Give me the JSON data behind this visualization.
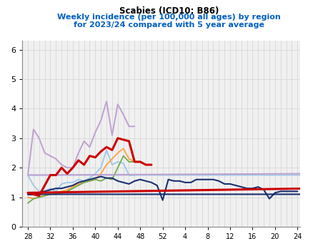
{
  "title_line1": "Scabies (ICD10: B86)",
  "title_line2": "Weekly incidence (per 100,000 all ages) by region",
  "title_line3": "for 2023/24 compared with 5 year average",
  "background_color": "#ffffff",
  "plot_bg_color": "#f0f0f0",
  "grid_color": "#d8d8d8",
  "ylim": [
    0,
    6.3
  ],
  "yticks": [
    0,
    1,
    2,
    3,
    4,
    5,
    6
  ],
  "xtick_weeks": [
    28,
    32,
    36,
    40,
    44,
    48,
    52,
    4,
    8,
    12,
    16,
    20,
    24
  ],
  "england_red": {
    "color": "#CC0000",
    "lw": 2.2,
    "weeks": [
      27,
      28,
      29,
      30,
      31,
      32,
      33,
      34,
      35,
      36,
      37,
      38,
      39,
      40,
      41,
      42,
      43,
      44,
      45,
      46,
      47,
      48,
      49,
      50
    ],
    "vals": [
      1.3,
      1.15,
      1.1,
      1.05,
      1.4,
      1.75,
      1.75,
      2.0,
      1.8,
      2.0,
      2.25,
      2.1,
      2.4,
      2.35,
      2.55,
      2.7,
      2.6,
      3.0,
      2.95,
      2.9,
      2.2,
      2.2,
      2.1,
      2.1
    ]
  },
  "north_lilac": {
    "color": "#C0A0D0",
    "lw": 1.4,
    "weeks": [
      27,
      28,
      29,
      30,
      31,
      32,
      33,
      34,
      35,
      36,
      37,
      38,
      39,
      40,
      41,
      42,
      43,
      44,
      45,
      46,
      47,
      48,
      49,
      50
    ],
    "vals": [
      1.8,
      1.75,
      3.3,
      3.0,
      2.5,
      2.4,
      2.3,
      2.1,
      2.0,
      2.0,
      2.5,
      2.9,
      2.7,
      3.2,
      3.6,
      4.25,
      3.1,
      4.15,
      3.8,
      3.4,
      3.4,
      null,
      null,
      null
    ]
  },
  "lightblue": {
    "color": "#9EC8E8",
    "lw": 1.3,
    "weeks": [
      27,
      28,
      29,
      30,
      31,
      32,
      33,
      34,
      35,
      36,
      37,
      38,
      39,
      40,
      41,
      42,
      43,
      44,
      45,
      46,
      47,
      48,
      49,
      50
    ],
    "vals": [
      1.75,
      1.75,
      1.4,
      1.2,
      1.2,
      1.3,
      1.2,
      1.45,
      1.5,
      1.5,
      1.6,
      1.55,
      1.65,
      1.8,
      2.0,
      2.6,
      2.1,
      2.2,
      2.15,
      1.75,
      1.75,
      null,
      null,
      null
    ]
  },
  "orange": {
    "color": "#FFA040",
    "lw": 1.3,
    "weeks": [
      28,
      29,
      30,
      31,
      32,
      33,
      34,
      35,
      36,
      37,
      38,
      39,
      40,
      41,
      42,
      43,
      44,
      45,
      46,
      47,
      48,
      49
    ],
    "vals": [
      1.0,
      0.95,
      1.0,
      1.05,
      1.1,
      1.15,
      1.2,
      1.25,
      1.35,
      1.45,
      1.5,
      1.55,
      1.6,
      1.8,
      2.1,
      2.3,
      2.5,
      2.65,
      2.3,
      2.2,
      null,
      null
    ]
  },
  "green": {
    "color": "#70AD47",
    "lw": 1.3,
    "weeks": [
      28,
      29,
      30,
      31,
      32,
      33,
      34,
      35,
      36,
      37,
      38,
      39,
      40,
      41,
      42,
      43,
      44,
      45,
      46,
      47,
      48
    ],
    "vals": [
      0.8,
      0.95,
      1.0,
      1.05,
      1.1,
      1.1,
      1.15,
      1.2,
      1.3,
      1.4,
      1.5,
      1.55,
      1.6,
      1.55,
      1.65,
      1.6,
      2.0,
      2.4,
      2.2,
      2.2,
      null
    ]
  },
  "fiveyravg": {
    "color": "#1A3070",
    "lw": 1.5,
    "weeks": [
      27,
      28,
      29,
      30,
      31,
      32,
      33,
      34,
      35,
      36,
      37,
      38,
      39,
      40,
      41,
      42,
      43,
      44,
      45,
      46,
      47,
      48,
      49,
      50,
      51,
      52,
      1,
      2,
      3,
      4,
      5,
      6,
      7,
      8,
      9,
      10,
      11,
      12,
      13,
      14,
      15,
      16,
      17,
      18,
      19,
      20,
      21,
      22,
      23,
      24
    ],
    "vals": [
      1.1,
      1.1,
      1.1,
      1.15,
      1.2,
      1.25,
      1.3,
      1.3,
      1.35,
      1.4,
      1.5,
      1.55,
      1.6,
      1.65,
      1.7,
      1.65,
      1.65,
      1.55,
      1.5,
      1.45,
      1.55,
      1.6,
      1.55,
      1.5,
      1.4,
      0.9,
      1.6,
      1.55,
      1.55,
      1.5,
      1.5,
      1.6,
      1.6,
      1.6,
      1.6,
      1.55,
      1.45,
      1.45,
      1.4,
      1.35,
      1.3,
      1.3,
      1.35,
      1.25,
      0.95,
      1.15,
      1.2,
      1.2,
      1.2,
      1.2
    ]
  }
}
